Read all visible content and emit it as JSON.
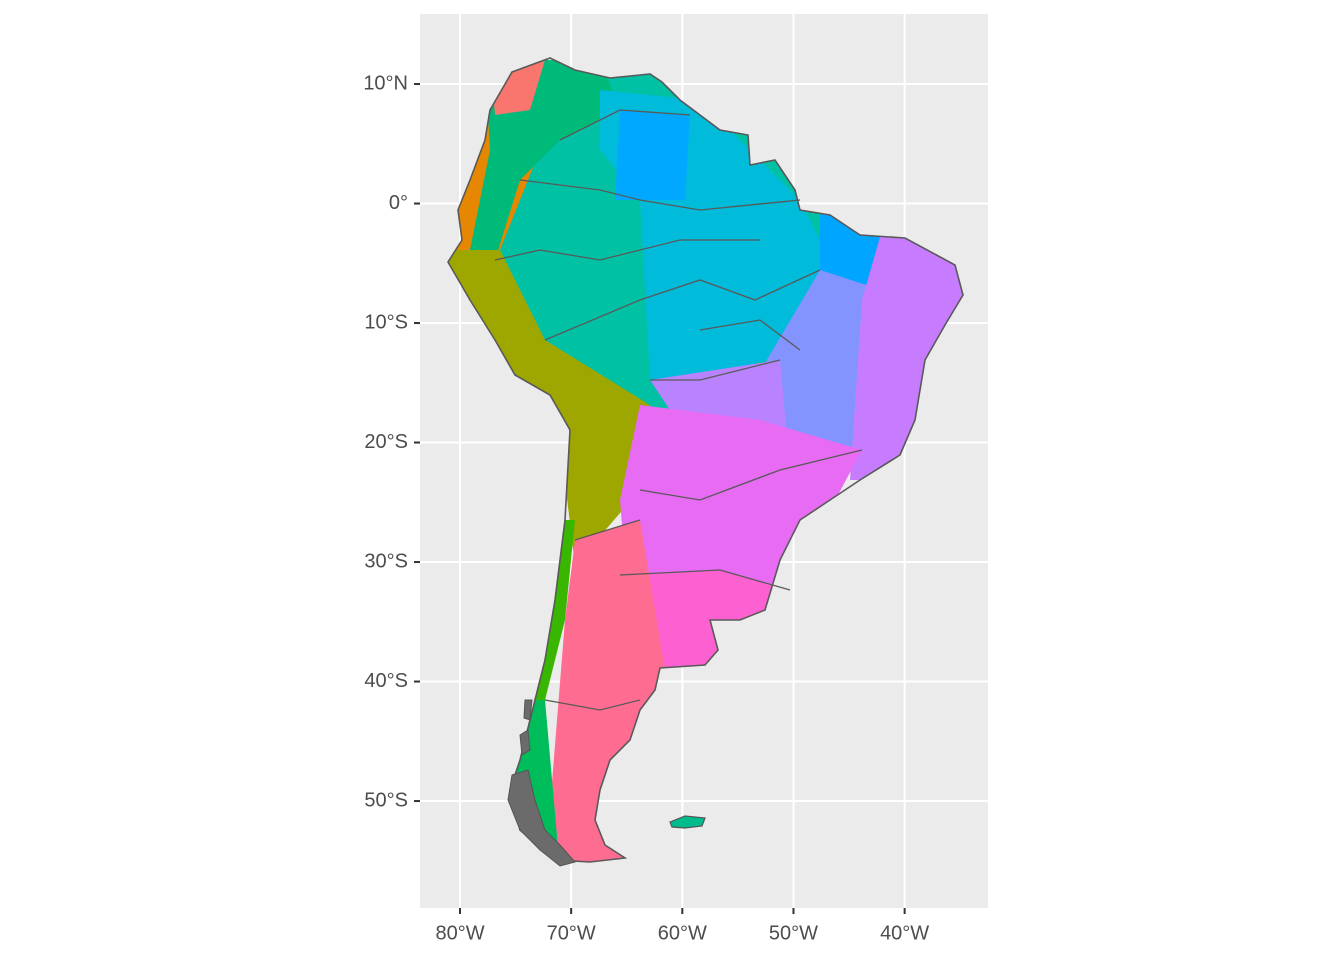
{
  "chart_data": {
    "type": "map",
    "xlim": [
      -83.6,
      -32.5
    ],
    "ylim": [
      -58.95,
      15.86
    ],
    "xticks": [
      {
        "value": -80,
        "label": "80°W"
      },
      {
        "value": -70,
        "label": "70°W"
      },
      {
        "value": -60,
        "label": "60°W"
      },
      {
        "value": -50,
        "label": "50°W"
      },
      {
        "value": -40,
        "label": "40°W"
      }
    ],
    "yticks": [
      {
        "value": 10,
        "label": "10°N"
      },
      {
        "value": 0,
        "label": "0°"
      },
      {
        "value": -10,
        "label": "10°S"
      },
      {
        "value": -20,
        "label": "20°S"
      },
      {
        "value": -30,
        "label": "30°S"
      },
      {
        "value": -40,
        "label": "40°S"
      },
      {
        "value": -50,
        "label": "50°S"
      }
    ],
    "grid": true
  }
}
